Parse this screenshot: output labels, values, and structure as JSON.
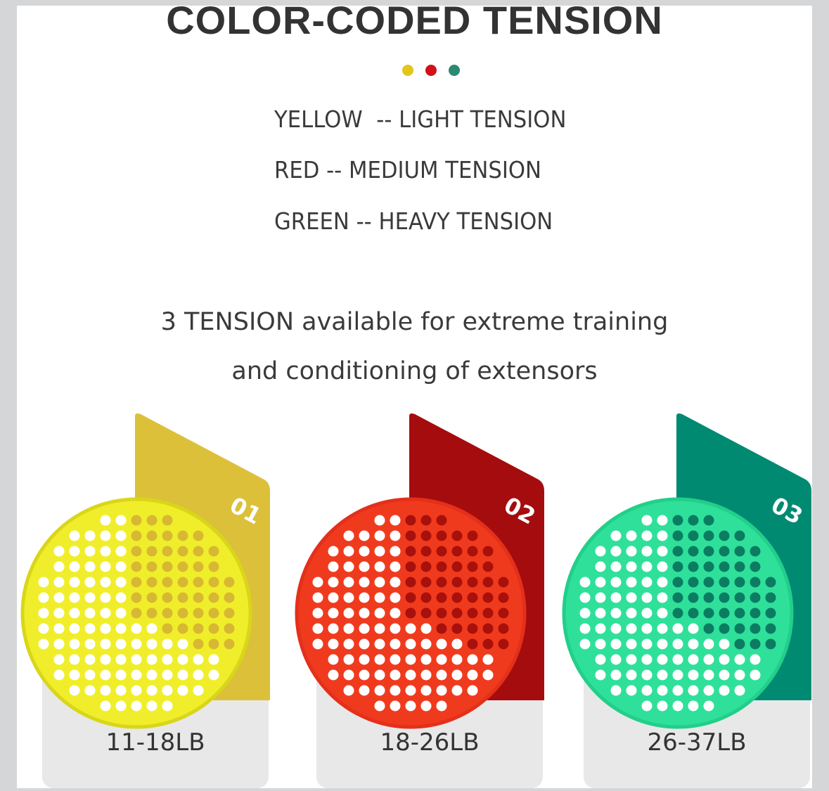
{
  "title": "COLOR-CODED TENSION",
  "legend": [
    {
      "text": "YELLOW  -- LIGHT TENSION"
    },
    {
      "text": "RED -- MEDIUM TENSION"
    },
    {
      "text": "GREEN -- HEAVY TENSION"
    }
  ],
  "subtitle": {
    "line1": "3 TENSION available for extreme training",
    "line2": "and conditioning of extensors"
  },
  "products": [
    {
      "number": "01",
      "weight": "11-18LB",
      "card_color": "#dcc03a",
      "disc_color": "#f0ee2a",
      "disc_edge": "#d9d61a",
      "hole_dark": "#d8b832"
    },
    {
      "number": "02",
      "weight": "18-26LB",
      "card_color": "#a50c0e",
      "disc_color": "#f03a1e",
      "disc_edge": "#e4301a",
      "hole_dark": "#a8100c"
    },
    {
      "number": "03",
      "weight": "26-37LB",
      "card_color": "#008a72",
      "disc_color": "#2fe09a",
      "disc_edge": "#22cf8a",
      "hole_dark": "#0b7c62"
    }
  ],
  "colors": {
    "dot_yellow": "#e4c51c",
    "dot_red": "#d0101a",
    "dot_green": "#2a8a72"
  }
}
